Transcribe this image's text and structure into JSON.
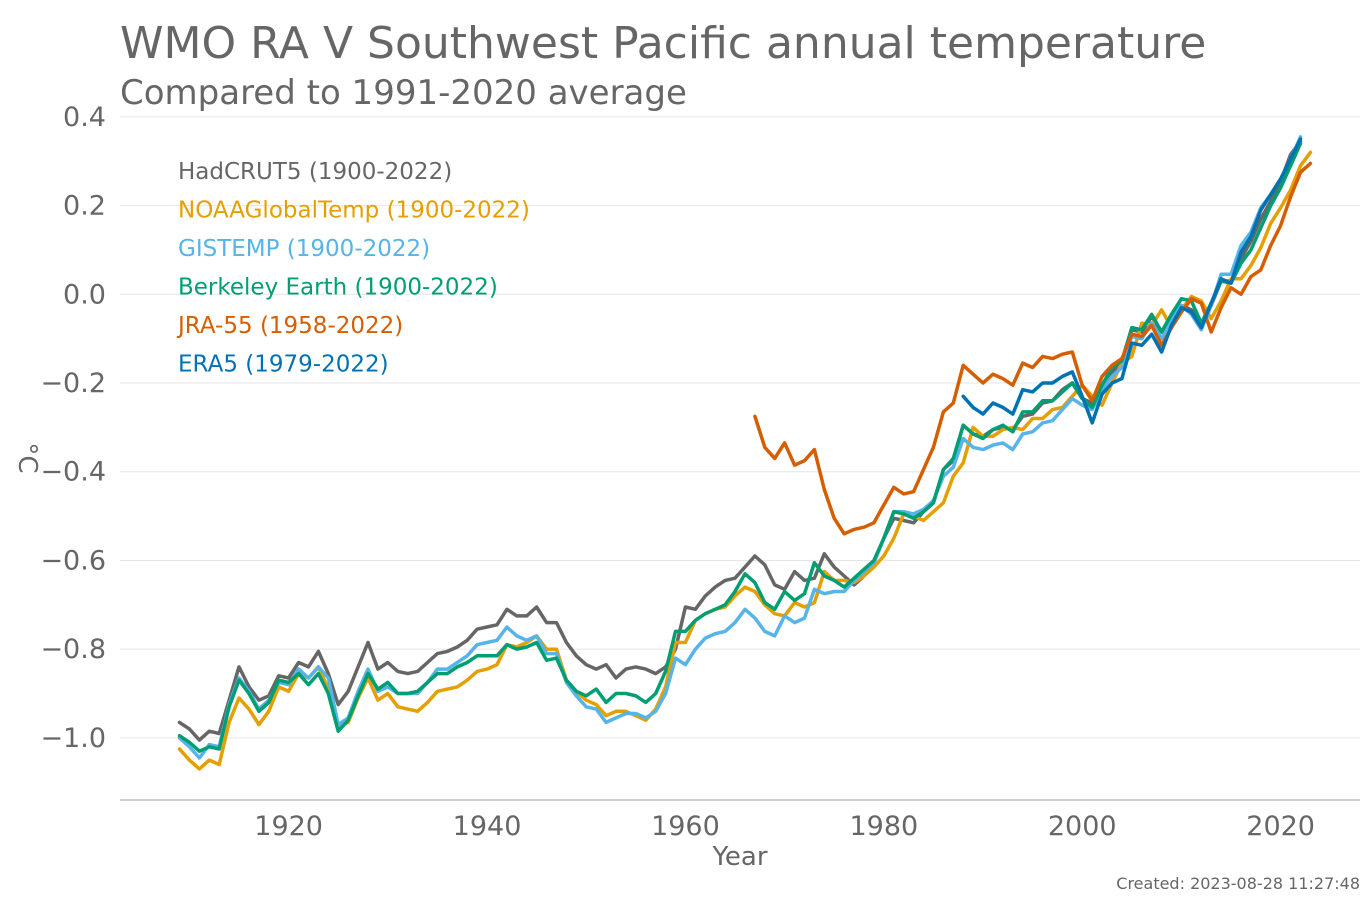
{
  "chart_data": {
    "type": "line",
    "title": "WMO RA V Southwest Pacific annual temperature",
    "subtitle": "Compared to 1991-2020 average",
    "xlabel": "Year",
    "ylabel": "°C",
    "xlim": [
      1903,
      2028
    ],
    "ylim": [
      -1.14,
      0.42
    ],
    "x_ticks": [
      1920,
      1940,
      1960,
      1980,
      2000,
      2020
    ],
    "x_tick_labels": [
      "1920",
      "1940",
      "1960",
      "1980",
      "2000",
      "2020"
    ],
    "y_ticks": [
      0.4,
      0.2,
      0.0,
      -0.2,
      -0.4,
      -0.6,
      -0.8,
      -1.0
    ],
    "y_tick_labels": [
      "0.4",
      "0.2",
      "0.0",
      "−0.2",
      "−0.4",
      "−0.6",
      "−0.8",
      "−1.0"
    ],
    "grid": true,
    "legend_position": "top-left",
    "footer": "Created: 2023-08-28 11:27:48",
    "series": [
      {
        "name": "HadCRUT5 (1900-2022)",
        "color": "#666666",
        "start_year": 1909,
        "values": [
          -0.965,
          -0.98,
          -1.005,
          -0.985,
          -0.99,
          -0.915,
          -0.84,
          -0.885,
          -0.915,
          -0.905,
          -0.86,
          -0.865,
          -0.83,
          -0.84,
          -0.805,
          -0.855,
          -0.925,
          -0.895,
          -0.84,
          -0.785,
          -0.845,
          -0.83,
          -0.85,
          -0.855,
          -0.85,
          -0.83,
          -0.81,
          -0.805,
          -0.795,
          -0.78,
          -0.755,
          -0.75,
          -0.745,
          -0.71,
          -0.725,
          -0.725,
          -0.705,
          -0.74,
          -0.74,
          -0.785,
          -0.815,
          -0.835,
          -0.845,
          -0.835,
          -0.865,
          -0.845,
          -0.84,
          -0.845,
          -0.855,
          -0.84,
          -0.8,
          -0.705,
          -0.71,
          -0.68,
          -0.66,
          -0.645,
          -0.64,
          -0.615,
          -0.59,
          -0.61,
          -0.655,
          -0.665,
          -0.625,
          -0.645,
          -0.64,
          -0.585,
          -0.615,
          -0.635,
          -0.655,
          -0.635,
          -0.605,
          -0.55,
          -0.505,
          -0.51,
          -0.515,
          -0.49,
          -0.47,
          -0.395,
          -0.375,
          -0.295,
          -0.315,
          -0.32,
          -0.305,
          -0.3,
          -0.305,
          -0.275,
          -0.27,
          -0.245,
          -0.24,
          -0.215,
          -0.2,
          -0.235,
          -0.245,
          -0.205,
          -0.175,
          -0.155,
          -0.08,
          -0.085,
          -0.05,
          -0.085,
          -0.045,
          -0.025,
          -0.035,
          -0.065,
          -0.025,
          0.03,
          0.03,
          0.08,
          0.12,
          0.17,
          0.21,
          0.255,
          0.315,
          0.345
        ]
      },
      {
        "name": "NOAAGlobalTemp (1900-2022)",
        "color": "#e69f00",
        "start_year": 1909,
        "values": [
          -1.025,
          -1.05,
          -1.07,
          -1.05,
          -1.06,
          -0.965,
          -0.91,
          -0.935,
          -0.97,
          -0.94,
          -0.885,
          -0.895,
          -0.855,
          -0.865,
          -0.84,
          -0.89,
          -0.975,
          -0.965,
          -0.91,
          -0.865,
          -0.915,
          -0.9,
          -0.93,
          -0.935,
          -0.94,
          -0.92,
          -0.895,
          -0.89,
          -0.885,
          -0.87,
          -0.85,
          -0.845,
          -0.835,
          -0.79,
          -0.795,
          -0.785,
          -0.77,
          -0.8,
          -0.8,
          -0.87,
          -0.895,
          -0.915,
          -0.925,
          -0.95,
          -0.94,
          -0.94,
          -0.95,
          -0.96,
          -0.935,
          -0.885,
          -0.785,
          -0.785,
          -0.735,
          -0.72,
          -0.71,
          -0.705,
          -0.68,
          -0.66,
          -0.67,
          -0.7,
          -0.72,
          -0.725,
          -0.695,
          -0.705,
          -0.695,
          -0.625,
          -0.645,
          -0.645,
          -0.65,
          -0.635,
          -0.615,
          -0.59,
          -0.55,
          -0.495,
          -0.5,
          -0.51,
          -0.49,
          -0.47,
          -0.41,
          -0.38,
          -0.3,
          -0.32,
          -0.32,
          -0.305,
          -0.3,
          -0.305,
          -0.28,
          -0.28,
          -0.26,
          -0.255,
          -0.23,
          -0.205,
          -0.23,
          -0.25,
          -0.2,
          -0.155,
          -0.14,
          -0.065,
          -0.07,
          -0.035,
          -0.075,
          -0.035,
          -0.005,
          -0.015,
          -0.055,
          -0.015,
          0.035,
          0.035,
          0.065,
          0.105,
          0.16,
          0.195,
          0.235,
          0.29,
          0.32
        ]
      },
      {
        "name": "GISTEMP (1900-2022)",
        "color": "#56b4e9",
        "start_year": 1909,
        "values": [
          -1.0,
          -1.02,
          -1.045,
          -1.015,
          -1.02,
          -0.925,
          -0.865,
          -0.895,
          -0.935,
          -0.915,
          -0.875,
          -0.88,
          -0.845,
          -0.865,
          -0.84,
          -0.865,
          -0.97,
          -0.955,
          -0.895,
          -0.845,
          -0.895,
          -0.885,
          -0.9,
          -0.9,
          -0.9,
          -0.875,
          -0.845,
          -0.845,
          -0.83,
          -0.815,
          -0.79,
          -0.785,
          -0.78,
          -0.75,
          -0.77,
          -0.78,
          -0.77,
          -0.81,
          -0.81,
          -0.875,
          -0.905,
          -0.93,
          -0.935,
          -0.965,
          -0.955,
          -0.945,
          -0.945,
          -0.955,
          -0.94,
          -0.9,
          -0.82,
          -0.835,
          -0.8,
          -0.775,
          -0.765,
          -0.76,
          -0.74,
          -0.71,
          -0.73,
          -0.76,
          -0.77,
          -0.725,
          -0.74,
          -0.73,
          -0.665,
          -0.675,
          -0.67,
          -0.67,
          -0.645,
          -0.625,
          -0.605,
          -0.55,
          -0.49,
          -0.49,
          -0.495,
          -0.485,
          -0.465,
          -0.41,
          -0.39,
          -0.325,
          -0.345,
          -0.35,
          -0.34,
          -0.335,
          -0.35,
          -0.315,
          -0.31,
          -0.29,
          -0.285,
          -0.26,
          -0.235,
          -0.25,
          -0.26,
          -0.215,
          -0.185,
          -0.165,
          -0.095,
          -0.1,
          -0.065,
          -0.1,
          -0.055,
          -0.025,
          -0.045,
          -0.08,
          -0.025,
          0.045,
          0.045,
          0.11,
          0.14,
          0.195,
          0.225,
          0.26,
          0.305,
          0.355
        ]
      },
      {
        "name": "Berkeley Earth (1900-2022)",
        "color": "#009e73",
        "start_year": 1909,
        "values": [
          -0.995,
          -1.01,
          -1.03,
          -1.02,
          -1.025,
          -0.93,
          -0.87,
          -0.9,
          -0.94,
          -0.92,
          -0.87,
          -0.875,
          -0.855,
          -0.88,
          -0.855,
          -0.9,
          -0.985,
          -0.96,
          -0.905,
          -0.855,
          -0.89,
          -0.875,
          -0.9,
          -0.9,
          -0.895,
          -0.875,
          -0.855,
          -0.855,
          -0.84,
          -0.83,
          -0.815,
          -0.815,
          -0.815,
          -0.79,
          -0.8,
          -0.795,
          -0.785,
          -0.825,
          -0.82,
          -0.87,
          -0.895,
          -0.905,
          -0.89,
          -0.92,
          -0.9,
          -0.9,
          -0.905,
          -0.92,
          -0.9,
          -0.85,
          -0.76,
          -0.76,
          -0.735,
          -0.72,
          -0.71,
          -0.7,
          -0.67,
          -0.63,
          -0.65,
          -0.695,
          -0.71,
          -0.67,
          -0.69,
          -0.675,
          -0.605,
          -0.635,
          -0.645,
          -0.66,
          -0.64,
          -0.62,
          -0.6,
          -0.55,
          -0.49,
          -0.495,
          -0.505,
          -0.49,
          -0.47,
          -0.395,
          -0.37,
          -0.295,
          -0.315,
          -0.325,
          -0.305,
          -0.295,
          -0.31,
          -0.265,
          -0.265,
          -0.24,
          -0.24,
          -0.22,
          -0.2,
          -0.235,
          -0.255,
          -0.205,
          -0.165,
          -0.15,
          -0.075,
          -0.08,
          -0.045,
          -0.085,
          -0.045,
          -0.01,
          -0.015,
          -0.065,
          -0.02,
          0.03,
          0.025,
          0.07,
          0.1,
          0.15,
          0.2,
          0.24,
          0.29,
          0.34
        ]
      },
      {
        "name": "JRA-55 (1958-2022)",
        "color": "#d55e00",
        "start_year": 1967,
        "values": [
          -0.275,
          -0.345,
          -0.37,
          -0.335,
          -0.385,
          -0.375,
          -0.35,
          -0.44,
          -0.505,
          -0.54,
          -0.53,
          -0.525,
          -0.515,
          -0.475,
          -0.435,
          -0.45,
          -0.445,
          -0.395,
          -0.345,
          -0.265,
          -0.245,
          -0.16,
          -0.18,
          -0.2,
          -0.18,
          -0.19,
          -0.205,
          -0.155,
          -0.165,
          -0.14,
          -0.145,
          -0.135,
          -0.13,
          -0.205,
          -0.24,
          -0.185,
          -0.16,
          -0.145,
          -0.09,
          -0.095,
          -0.07,
          -0.115,
          -0.075,
          -0.04,
          -0.01,
          -0.02,
          -0.085,
          -0.03,
          0.015,
          0.0,
          0.04,
          0.055,
          0.11,
          0.155,
          0.22,
          0.275,
          0.295
        ]
      },
      {
        "name": "ERA5 (1979-2022)",
        "color": "#0072b2",
        "start_year": 1988,
        "values": [
          -0.23,
          -0.255,
          -0.27,
          -0.245,
          -0.255,
          -0.27,
          -0.215,
          -0.22,
          -0.2,
          -0.2,
          -0.185,
          -0.175,
          -0.23,
          -0.29,
          -0.225,
          -0.2,
          -0.19,
          -0.11,
          -0.115,
          -0.09,
          -0.13,
          -0.07,
          -0.03,
          -0.04,
          -0.075,
          -0.02,
          0.035,
          0.025,
          0.095,
          0.13,
          0.19,
          0.225,
          0.26,
          0.305,
          0.35
        ]
      }
    ]
  }
}
